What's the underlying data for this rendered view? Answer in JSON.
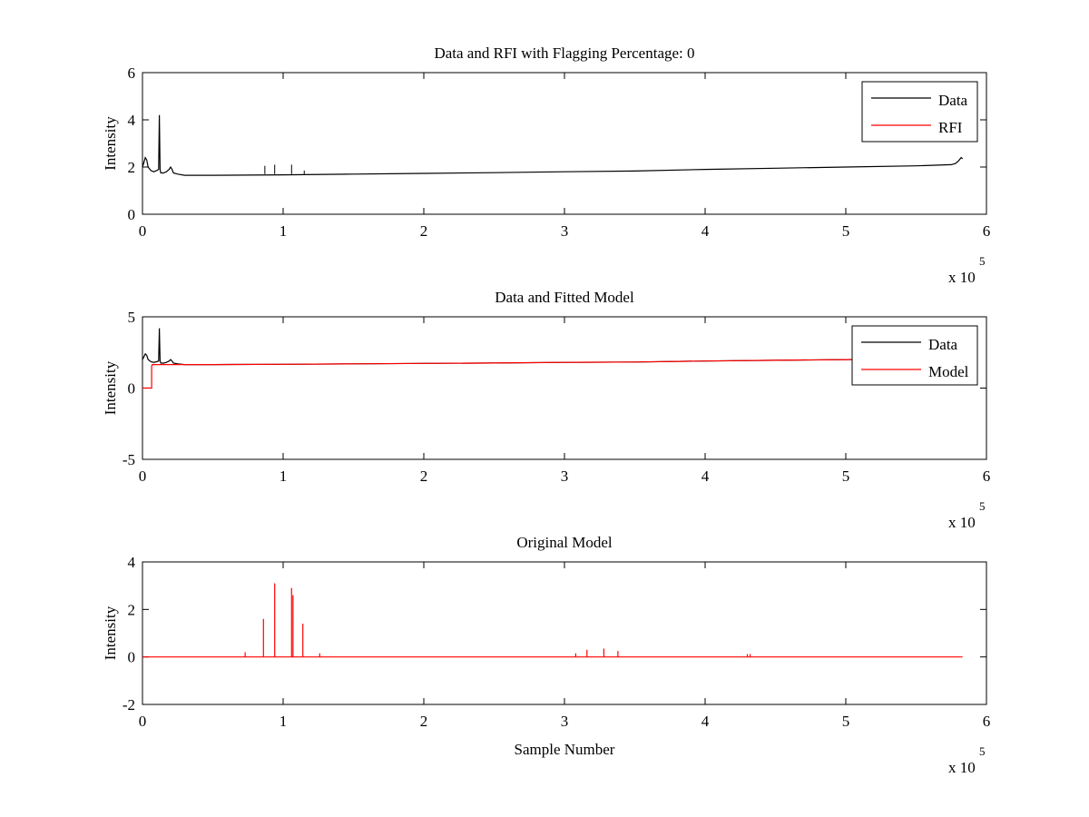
{
  "chart_data": [
    {
      "type": "line",
      "title": "Data and RFI with Flagging Percentage: 0",
      "xlabel": "",
      "ylabel": "Intensity",
      "xlim": [
        0,
        6
      ],
      "ylim": [
        0,
        6
      ],
      "xticks": [
        "0",
        "1",
        "2",
        "3",
        "4",
        "5",
        "6"
      ],
      "yticks": [
        "0",
        "2",
        "4",
        "6"
      ],
      "x_multiplier_label": "x 10",
      "x_multiplier_exponent": "5",
      "legend": {
        "placement": "top-right",
        "entries": [
          "Data",
          "RFI"
        ]
      },
      "series": [
        {
          "name": "Data",
          "color": "#000000",
          "x": [
            0,
            0.01,
            0.02,
            0.03,
            0.04,
            0.06,
            0.08,
            0.1,
            0.115,
            0.12,
            0.125,
            0.13,
            0.15,
            0.17,
            0.19,
            0.2,
            0.21,
            0.22,
            0.25,
            0.3,
            0.5,
            1.0,
            1.5,
            2.0,
            2.5,
            3.0,
            3.5,
            4.0,
            4.5,
            5.0,
            5.5,
            5.75,
            5.78,
            5.8,
            5.82,
            5.83
          ],
          "y": [
            2.0,
            2.2,
            2.4,
            2.3,
            2.0,
            1.85,
            1.8,
            1.85,
            1.9,
            4.2,
            1.9,
            1.75,
            1.75,
            1.8,
            1.9,
            2.0,
            1.9,
            1.75,
            1.7,
            1.65,
            1.65,
            1.67,
            1.7,
            1.73,
            1.76,
            1.8,
            1.83,
            1.9,
            1.95,
            2.0,
            2.05,
            2.1,
            2.15,
            2.25,
            2.4,
            2.35
          ]
        },
        {
          "name": "RFI",
          "color": "#ff0000",
          "x": [],
          "y": []
        }
      ],
      "spikes": [
        {
          "x": 0.87,
          "y": 2.05
        },
        {
          "x": 0.94,
          "y": 2.1
        },
        {
          "x": 1.06,
          "y": 2.1
        },
        {
          "x": 1.15,
          "y": 1.85
        }
      ]
    },
    {
      "type": "line",
      "title": "Data and Fitted Model",
      "xlabel": "",
      "ylabel": "Intensity",
      "xlim": [
        0,
        6
      ],
      "ylim": [
        -5,
        5
      ],
      "xticks": [
        "0",
        "1",
        "2",
        "3",
        "4",
        "5",
        "6"
      ],
      "yticks": [
        "-5",
        "0",
        "5"
      ],
      "x_multiplier_label": "x 10",
      "x_multiplier_exponent": "5",
      "legend": {
        "placement": "top-right",
        "entries": [
          "Data",
          "Model"
        ]
      },
      "series": [
        {
          "name": "Data",
          "color": "#000000",
          "x": [
            0,
            0.01,
            0.02,
            0.03,
            0.04,
            0.06,
            0.08,
            0.1,
            0.115,
            0.12,
            0.125,
            0.13,
            0.15,
            0.17,
            0.19,
            0.2,
            0.21,
            0.22,
            0.25,
            0.3,
            0.5,
            1.0,
            1.5,
            2.0,
            2.5,
            3.0,
            3.5,
            4.0,
            4.5,
            5.0,
            5.5,
            5.75,
            5.78,
            5.8,
            5.82,
            5.83
          ],
          "y": [
            2.0,
            2.2,
            2.4,
            2.3,
            2.0,
            1.85,
            1.8,
            1.85,
            1.9,
            4.2,
            1.9,
            1.75,
            1.75,
            1.8,
            1.9,
            2.0,
            1.9,
            1.75,
            1.7,
            1.65,
            1.65,
            1.67,
            1.7,
            1.73,
            1.76,
            1.8,
            1.83,
            1.9,
            1.95,
            2.0,
            2.05,
            2.1,
            2.15,
            2.25,
            2.4,
            2.35
          ]
        },
        {
          "name": "Model",
          "color": "#ff0000",
          "x": [
            0,
            0.065,
            0.065,
            0.07,
            0.1,
            0.5,
            1.0,
            1.5,
            2.0,
            2.5,
            3.0,
            3.5,
            4.0,
            4.5,
            5.0,
            5.5,
            5.83
          ],
          "y": [
            0,
            0,
            1.5,
            1.65,
            1.65,
            1.65,
            1.67,
            1.7,
            1.73,
            1.76,
            1.8,
            1.83,
            1.9,
            1.95,
            2.0,
            2.05,
            2.1
          ]
        }
      ]
    },
    {
      "type": "line",
      "title": "Original Model",
      "xlabel": "Sample Number",
      "ylabel": "Intensity",
      "xlim": [
        0,
        6
      ],
      "ylim": [
        -2,
        4
      ],
      "xticks": [
        "0",
        "1",
        "2",
        "3",
        "4",
        "5",
        "6"
      ],
      "yticks": [
        "-2",
        "0",
        "2",
        "4"
      ],
      "x_multiplier_label": "x 10",
      "x_multiplier_exponent": "5",
      "series": [
        {
          "color": "#ff0000",
          "baseline": 0,
          "x_range": [
            0,
            5.83
          ],
          "spikes": [
            {
              "x": 0.86,
              "y": 1.6
            },
            {
              "x": 0.94,
              "y": 3.1
            },
            {
              "x": 1.06,
              "y": 2.9
            },
            {
              "x": 1.07,
              "y": 2.6
            },
            {
              "x": 1.14,
              "y": 1.4
            },
            {
              "x": 0.73,
              "y": 0.2
            },
            {
              "x": 1.26,
              "y": 0.15
            },
            {
              "x": 3.16,
              "y": 0.3
            },
            {
              "x": 3.28,
              "y": 0.35
            },
            {
              "x": 3.38,
              "y": 0.25
            },
            {
              "x": 3.08,
              "y": 0.15
            },
            {
              "x": 4.3,
              "y": 0.12
            },
            {
              "x": 4.32,
              "y": 0.12
            }
          ]
        }
      ]
    }
  ]
}
